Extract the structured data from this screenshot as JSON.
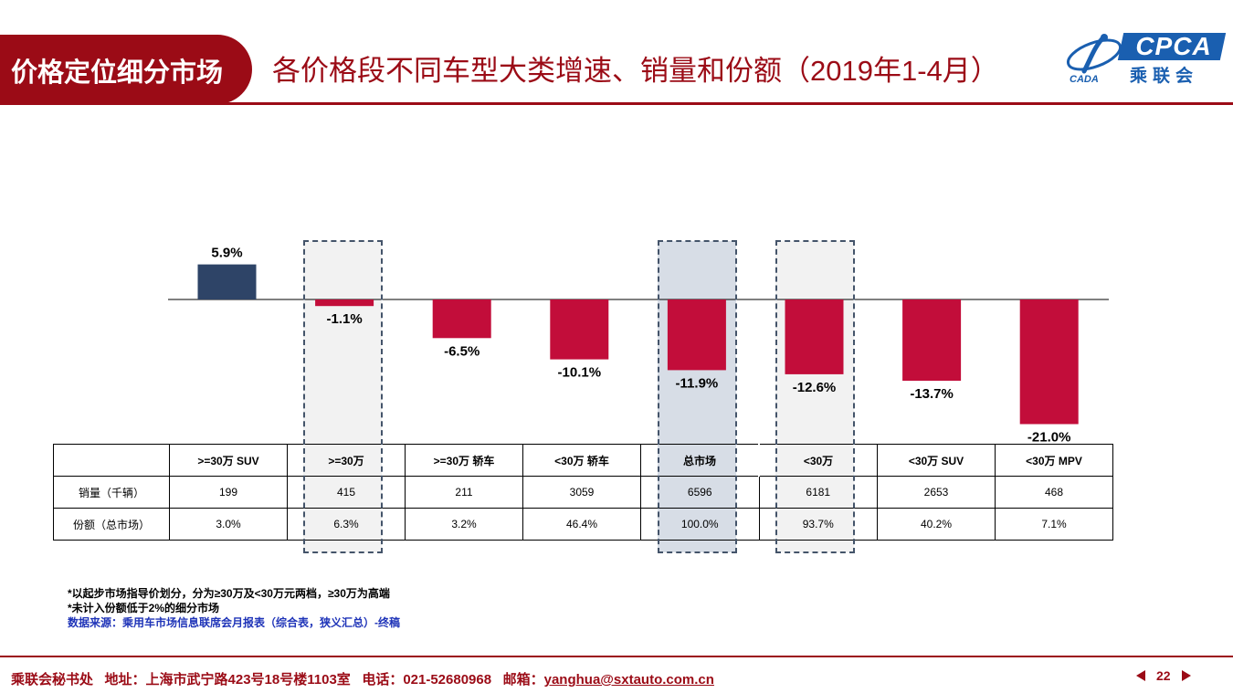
{
  "header": {
    "section": "价格定位细分市场",
    "title": "各价格段不同车型大类增速、销量和份额（2019年1-4月）",
    "logo_text": "CPCA",
    "logo_cn": "乘联会",
    "logo_small": "CADA"
  },
  "chart_data": {
    "type": "bar",
    "categories": [
      ">=30万 SUV",
      ">=30万",
      ">=30万 轿车",
      "<30万 轿车",
      "总市场",
      "<30万",
      "<30万 SUV",
      "<30万 MPV"
    ],
    "values": [
      5.9,
      -1.1,
      -6.5,
      -10.1,
      -11.9,
      -12.6,
      -13.7,
      -21.0
    ],
    "labels": [
      "5.9%",
      "-1.1%",
      "-6.5%",
      "-10.1%",
      "-11.9%",
      "-12.6%",
      "-13.7%",
      "-21.0%"
    ],
    "unit": "%",
    "colors": {
      "positive": "#2e4467",
      "negative": "#c20d3a"
    },
    "highlighted": [
      ">=30万",
      "总市场",
      "<30万"
    ],
    "grid": false,
    "legend": "none"
  },
  "table": {
    "headers": [
      ">=30万 SUV",
      ">=30万",
      ">=30万 轿车",
      "<30万 轿车",
      "总市场",
      "<30万",
      "<30万 SUV",
      "<30万 MPV"
    ],
    "rows": [
      {
        "label": "销量（千辆）",
        "cells": [
          "199",
          "415",
          "211",
          "3059",
          "6596",
          "6181",
          "2653",
          "468"
        ]
      },
      {
        "label": "份额（总市场）",
        "cells": [
          "3.0%",
          "6.3%",
          "3.2%",
          "46.4%",
          "100.0%",
          "93.7%",
          "40.2%",
          "7.1%"
        ]
      }
    ]
  },
  "notes": [
    "*以起步市场指导价划分，分为≥30万及<30万元两档，≥30万为高端",
    "*未计入份额低于2%的细分市场"
  ],
  "source": "数据来源：乘用车市场信息联席会月报表（综合表，狭义汇总）-终稿",
  "footer": {
    "org": "乘联会秘书处",
    "address": "地址：上海市武宁路423号18号楼1103室",
    "phone": "电话：021-52680968",
    "email_label": "邮箱：",
    "email": "yanghua@sxtauto.com.cn",
    "page": "22"
  },
  "colors": {
    "brand": "#9b0b16",
    "logo_blue": "#1a5fb0",
    "highlight_box": "#44546a",
    "source_text": "#1f34b8"
  }
}
